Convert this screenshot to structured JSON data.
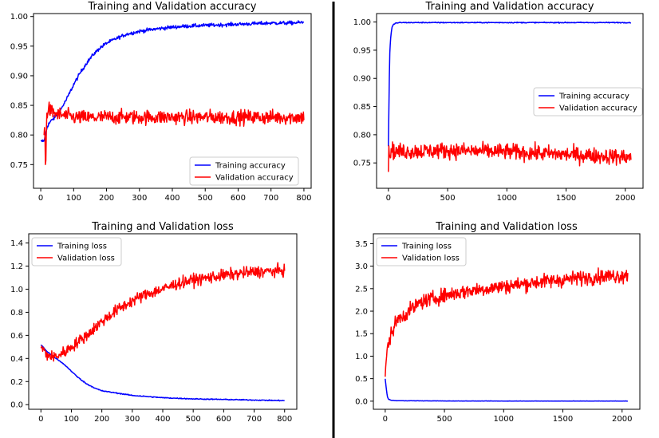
{
  "colors": {
    "training": "#0000ff",
    "validation": "#ff0000",
    "axis": "#000000",
    "divider": "#000000",
    "background": "#ffffff"
  },
  "chart_data": [
    {
      "type": "line",
      "title": "Training and Validation accuracy",
      "xlabel": "",
      "ylabel": "",
      "xlim": [
        -22,
        822
      ],
      "ylim": [
        0.71,
        1.005
      ],
      "xticks": [
        0,
        100,
        200,
        300,
        400,
        500,
        600,
        700,
        800
      ],
      "yticks": [
        0.75,
        0.8,
        0.85,
        0.9,
        0.95,
        1.0
      ],
      "ytick_labels": [
        "0.75",
        "0.80",
        "0.85",
        "0.90",
        "0.95",
        "1.00"
      ],
      "legend_position": "lower right",
      "grid": false,
      "series": [
        {
          "name": "Training accuracy",
          "color": "#0000ff",
          "x": [
            0,
            10,
            20,
            30,
            40,
            50,
            60,
            80,
            100,
            120,
            140,
            160,
            180,
            200,
            230,
            260,
            300,
            350,
            400,
            450,
            500,
            550,
            600,
            650,
            700,
            750,
            800
          ],
          "y": [
            0.789,
            0.79,
            0.815,
            0.823,
            0.828,
            0.835,
            0.842,
            0.862,
            0.885,
            0.905,
            0.922,
            0.936,
            0.947,
            0.955,
            0.963,
            0.97,
            0.975,
            0.979,
            0.982,
            0.984,
            0.985,
            0.986,
            0.987,
            0.988,
            0.989,
            0.989,
            0.99
          ],
          "noise": 0.003
        },
        {
          "name": "Validation accuracy",
          "color": "#ff0000",
          "x": [
            10,
            12,
            15,
            18,
            22,
            30,
            50,
            80,
            100,
            150,
            200,
            300,
            400,
            500,
            600,
            700,
            800
          ],
          "y": [
            0.8,
            0.83,
            0.726,
            0.835,
            0.845,
            0.84,
            0.835,
            0.832,
            0.83,
            0.829,
            0.83,
            0.83,
            0.83,
            0.83,
            0.83,
            0.83,
            0.83
          ],
          "noise": 0.012
        }
      ]
    },
    {
      "type": "line",
      "title": "Training and Validation accuracy",
      "xlabel": "",
      "ylabel": "",
      "xlim": [
        -100,
        2150
      ],
      "ylim": [
        0.705,
        1.015
      ],
      "xticks": [
        0,
        500,
        1000,
        1500,
        2000
      ],
      "yticks": [
        0.75,
        0.8,
        0.85,
        0.9,
        0.95,
        1.0
      ],
      "ytick_labels": [
        "0.75",
        "0.80",
        "0.85",
        "0.90",
        "0.95",
        "1.00"
      ],
      "legend_position": "center right",
      "grid": false,
      "series": [
        {
          "name": "Training accuracy",
          "color": "#0000ff",
          "x": [
            0,
            10,
            20,
            30,
            40,
            60,
            100,
            200,
            500,
            1000,
            1500,
            2048
          ],
          "y": [
            0.78,
            0.94,
            0.975,
            0.99,
            0.995,
            0.998,
            0.999,
            0.999,
            0.999,
            0.999,
            0.999,
            0.999
          ],
          "noise": 0.0008
        },
        {
          "name": "Validation accuracy",
          "color": "#ff0000",
          "x": [
            0,
            5,
            10,
            20,
            50,
            500,
            1000,
            1500,
            2048
          ],
          "y": [
            0.72,
            0.79,
            0.76,
            0.775,
            0.77,
            0.772,
            0.77,
            0.765,
            0.76
          ],
          "noise": 0.014
        }
      ]
    },
    {
      "type": "line",
      "title": "Training and Validation loss",
      "xlabel": "",
      "ylabel": "",
      "xlim": [
        -40,
        840
      ],
      "ylim": [
        -0.04,
        1.48
      ],
      "xticks": [
        0,
        100,
        200,
        300,
        400,
        500,
        600,
        700,
        800
      ],
      "yticks": [
        0.0,
        0.2,
        0.4,
        0.6,
        0.8,
        1.0,
        1.2,
        1.4
      ],
      "ytick_labels": [
        "0.0",
        "0.2",
        "0.4",
        "0.6",
        "0.8",
        "1.0",
        "1.2",
        "1.4"
      ],
      "legend_position": "upper left",
      "grid": false,
      "series": [
        {
          "name": "Training loss",
          "color": "#0000ff",
          "x": [
            0,
            20,
            40,
            60,
            80,
            100,
            120,
            150,
            180,
            200,
            250,
            300,
            350,
            400,
            500,
            600,
            700,
            800
          ],
          "y": [
            0.52,
            0.46,
            0.42,
            0.38,
            0.34,
            0.29,
            0.24,
            0.18,
            0.14,
            0.12,
            0.1,
            0.08,
            0.07,
            0.06,
            0.05,
            0.045,
            0.04,
            0.035
          ],
          "noise": 0.004
        },
        {
          "name": "Validation loss",
          "color": "#ff0000",
          "x": [
            0,
            20,
            40,
            60,
            80,
            100,
            150,
            200,
            250,
            300,
            350,
            400,
            450,
            500,
            600,
            700,
            800
          ],
          "y": [
            0.5,
            0.43,
            0.41,
            0.43,
            0.46,
            0.5,
            0.6,
            0.72,
            0.82,
            0.9,
            0.96,
            1.0,
            1.05,
            1.08,
            1.12,
            1.15,
            1.16
          ],
          "noise": 0.05
        }
      ]
    },
    {
      "type": "line",
      "title": "Training and Validation loss",
      "xlabel": "",
      "ylabel": "",
      "xlim": [
        -100,
        2150
      ],
      "ylim": [
        -0.18,
        3.72
      ],
      "xticks": [
        0,
        500,
        1000,
        1500,
        2000
      ],
      "yticks": [
        0.0,
        0.5,
        1.0,
        1.5,
        2.0,
        2.5,
        3.0,
        3.5
      ],
      "ytick_labels": [
        "0.0",
        "0.5",
        "1.0",
        "1.5",
        "2.0",
        "2.5",
        "3.0",
        "3.5"
      ],
      "legend_position": "upper left",
      "grid": false,
      "series": [
        {
          "name": "Training loss",
          "color": "#0000ff",
          "x": [
            0,
            10,
            20,
            30,
            50,
            100,
            500,
            1000,
            1500,
            2048
          ],
          "y": [
            0.5,
            0.25,
            0.08,
            0.04,
            0.02,
            0.01,
            0.005,
            0.003,
            0.003,
            0.003
          ],
          "noise": 0.003
        },
        {
          "name": "Validation loss",
          "color": "#ff0000",
          "x": [
            0,
            10,
            20,
            50,
            100,
            200,
            300,
            500,
            700,
            1000,
            1300,
            1500,
            1700,
            2048
          ],
          "y": [
            0.55,
            0.9,
            1.2,
            1.5,
            1.8,
            2.0,
            2.2,
            2.35,
            2.45,
            2.55,
            2.65,
            2.7,
            2.75,
            2.8
          ],
          "noise": 0.16
        }
      ]
    }
  ]
}
